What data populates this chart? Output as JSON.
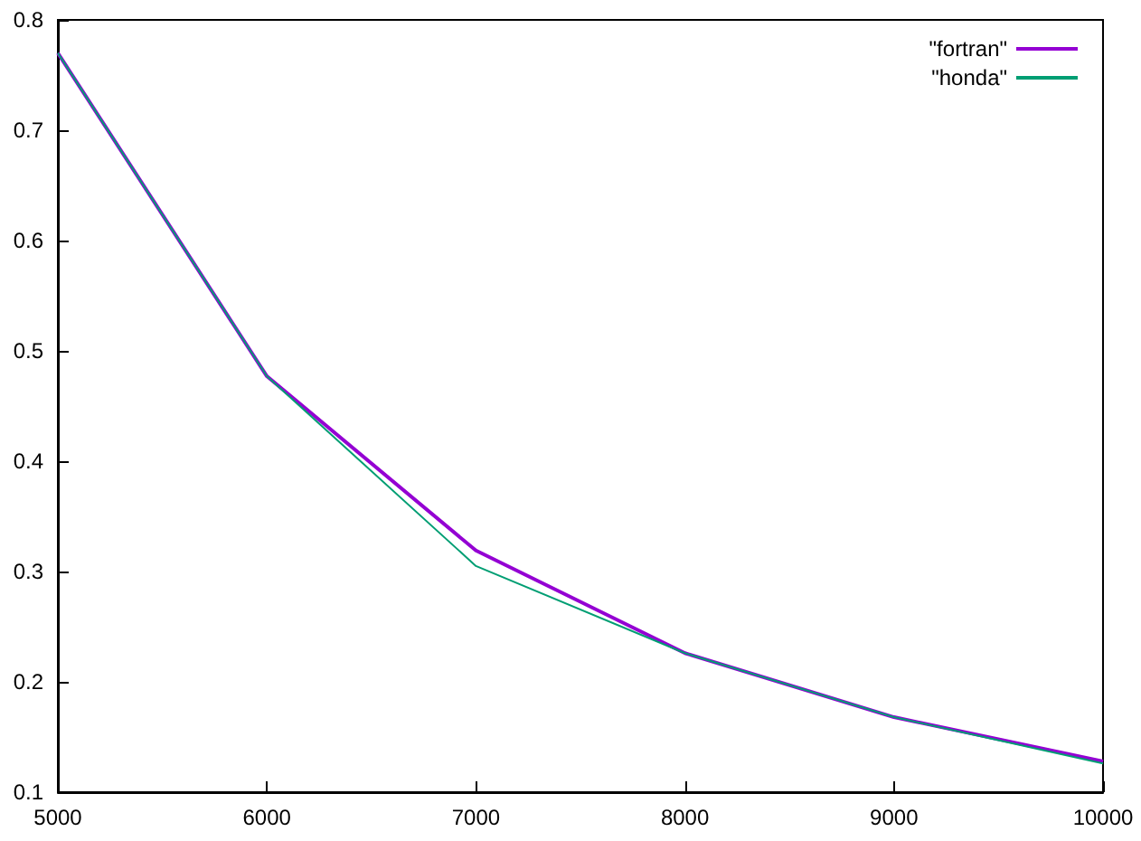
{
  "chart_data": {
    "type": "line",
    "x": [
      5000,
      6000,
      7000,
      8000,
      9000,
      10000
    ],
    "series": [
      {
        "name": "\"fortran\"",
        "color": "#9400d3",
        "values": [
          0.77,
          0.477,
          0.319,
          0.226,
          0.168,
          0.128
        ]
      },
      {
        "name": "\"honda\"",
        "color": "#009e73",
        "values": [
          0.77,
          0.477,
          0.305,
          0.226,
          0.168,
          0.126
        ]
      }
    ],
    "xlim": [
      5000,
      10000
    ],
    "xticks": [
      5000,
      6000,
      7000,
      8000,
      9000,
      10000
    ],
    "ylim": [
      0.1,
      0.8
    ],
    "yticks": [
      0.1,
      0.2,
      0.3,
      0.4,
      0.5,
      0.6,
      0.7,
      0.8
    ],
    "grid": false,
    "legend": "top right",
    "marker": "none",
    "line_style": "solid"
  }
}
